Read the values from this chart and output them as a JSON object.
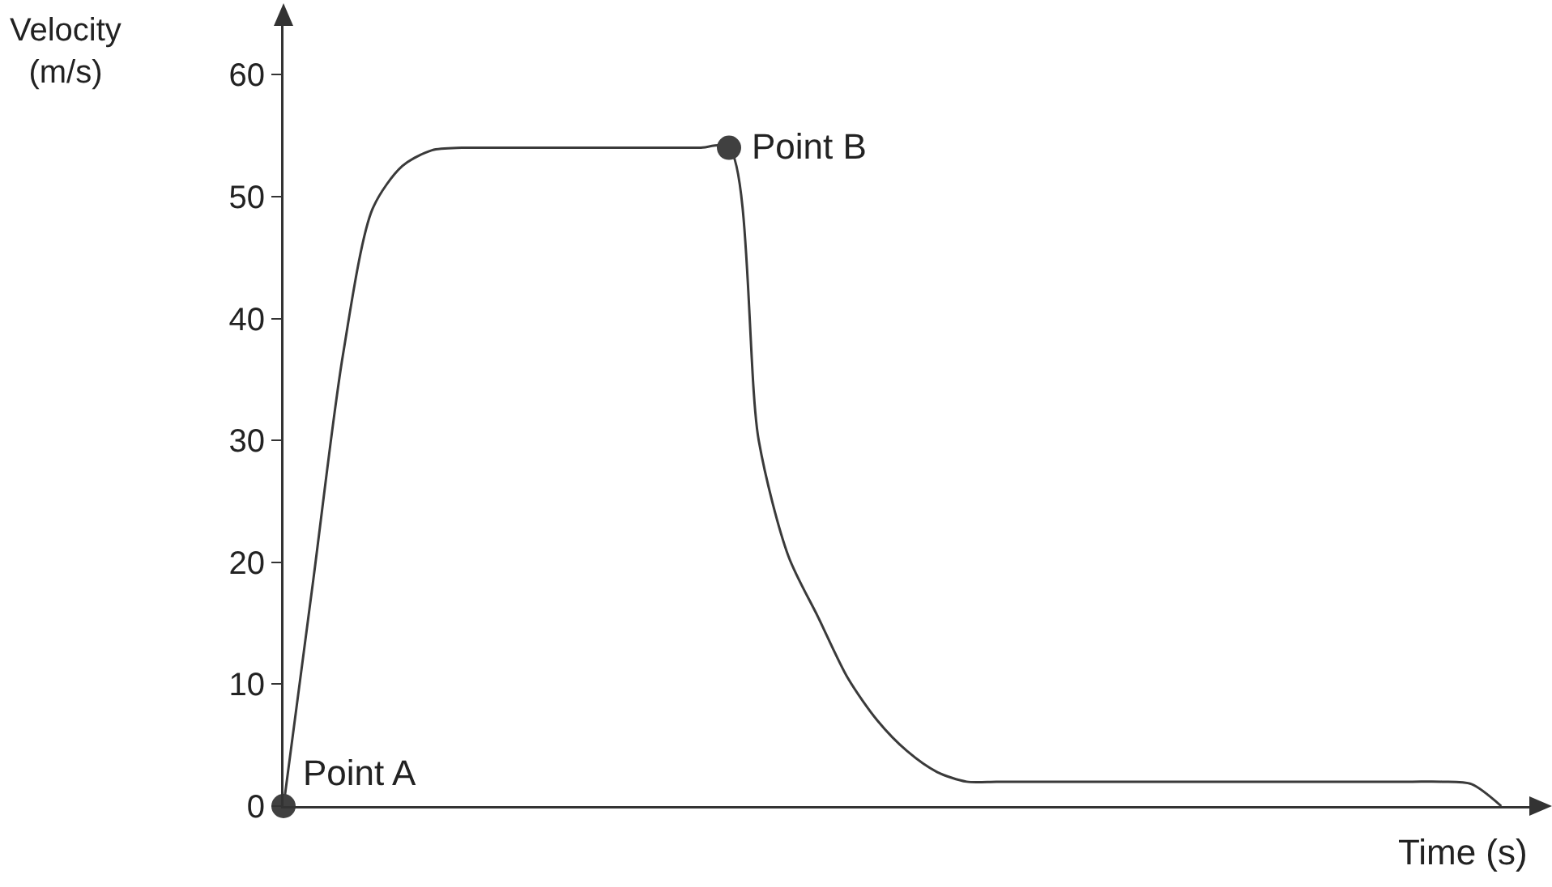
{
  "chart_data": {
    "type": "line",
    "xlabel": "Time (s)",
    "ylabel": "Velocity\n(m/s)",
    "categories": [
      null,
      null,
      null,
      null,
      null,
      null,
      null,
      null,
      null,
      null,
      null,
      null,
      null,
      null,
      null,
      null,
      null,
      null,
      null,
      null,
      null,
      null,
      null,
      null,
      null,
      null,
      null,
      null,
      null,
      null,
      null,
      null,
      null,
      null,
      null,
      null,
      null,
      null,
      null,
      null,
      null,
      null
    ],
    "series": [
      {
        "color": "#3a3a3a",
        "values": [
          0,
          18.5,
          37,
          49,
          52.5,
          53.8,
          54,
          54,
          54,
          54,
          54,
          54,
          54,
          54,
          54,
          54,
          30,
          20.5,
          15.5,
          10.5,
          7,
          4.5,
          2.8,
          2,
          2,
          2,
          2,
          2,
          2,
          2,
          2,
          2,
          2,
          2,
          2,
          2,
          2,
          2,
          2,
          2,
          1.8,
          0
        ]
      },
      {
        "type": "scatter",
        "color": "#404040",
        "marker": "circle",
        "values": [
          0,
          null,
          null,
          null,
          null,
          null,
          null,
          null,
          null,
          null,
          null,
          null,
          null,
          null,
          null,
          54,
          null,
          null,
          null,
          null,
          null,
          null,
          null,
          null,
          null,
          null,
          null,
          null,
          null,
          null,
          null,
          null,
          null,
          null,
          null,
          null,
          null,
          null,
          null,
          null,
          null,
          null
        ]
      }
    ],
    "annotations": [
      "Point A",
      "Point B"
    ],
    "ylim": [
      0,
      64
    ],
    "yticks": [
      0,
      10,
      20,
      30,
      40,
      50,
      60
    ],
    "grid": false,
    "tick_labels": "y"
  }
}
